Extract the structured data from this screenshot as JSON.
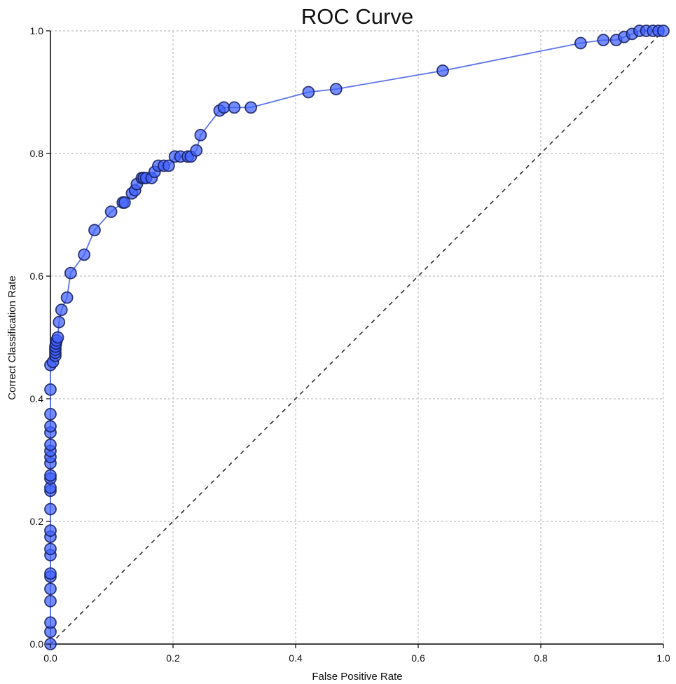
{
  "chart_data": {
    "type": "line",
    "title": "ROC Curve",
    "xlabel": "False Positive Rate",
    "ylabel": "Correct Classification Rate",
    "xlim": [
      0,
      1
    ],
    "ylim": [
      0,
      1
    ],
    "grid": true,
    "xticks": [
      "0.0",
      "0.2",
      "0.4",
      "0.6",
      "0.8",
      "1.0"
    ],
    "yticks": [
      "0.0",
      "0.2",
      "0.4",
      "0.6",
      "0.8",
      "1.0"
    ],
    "colors": {
      "curve": "#5d74e8",
      "point_fill": "#4061ff",
      "point_stroke": "#141c5a",
      "diagonal": "#222222",
      "grid": "#c8c8c8"
    },
    "reference_line": {
      "x": [
        0,
        1
      ],
      "y": [
        0,
        1
      ],
      "style": "dashed"
    },
    "series": [
      {
        "x": [
          0.0,
          0.0,
          0.0,
          0.0,
          0.0,
          0.0,
          0.0,
          0.0,
          0.0,
          0.0,
          0.0,
          0.0,
          0.0,
          0.0,
          0.0,
          0.0,
          0.0,
          0.0,
          0.0,
          0.0,
          0.0,
          0.0,
          0.0,
          0.0,
          0.0,
          0.004,
          0.008,
          0.008,
          0.008,
          0.008,
          0.009,
          0.01,
          0.012,
          0.014,
          0.018,
          0.027,
          0.033,
          0.055,
          0.072,
          0.099,
          0.118,
          0.121,
          0.133,
          0.138,
          0.141,
          0.149,
          0.152,
          0.156,
          0.165,
          0.17,
          0.176,
          0.185,
          0.193,
          0.203,
          0.212,
          0.224,
          0.229,
          0.238,
          0.245,
          0.276,
          0.283,
          0.3,
          0.327,
          0.421,
          0.466,
          0.64,
          0.865,
          0.902,
          0.923,
          0.936,
          0.949,
          0.961,
          0.972,
          0.983,
          0.992,
          1.0
        ],
        "y": [
          0.0,
          0.02,
          0.035,
          0.07,
          0.09,
          0.11,
          0.115,
          0.145,
          0.155,
          0.175,
          0.185,
          0.22,
          0.25,
          0.255,
          0.27,
          0.275,
          0.295,
          0.305,
          0.315,
          0.325,
          0.345,
          0.355,
          0.375,
          0.415,
          0.455,
          0.46,
          0.47,
          0.475,
          0.48,
          0.485,
          0.49,
          0.495,
          0.5,
          0.525,
          0.545,
          0.565,
          0.605,
          0.635,
          0.675,
          0.705,
          0.72,
          0.72,
          0.735,
          0.74,
          0.75,
          0.76,
          0.76,
          0.76,
          0.76,
          0.77,
          0.78,
          0.78,
          0.78,
          0.795,
          0.795,
          0.795,
          0.795,
          0.805,
          0.83,
          0.87,
          0.875,
          0.875,
          0.875,
          0.9,
          0.905,
          0.935,
          0.98,
          0.985,
          0.985,
          0.99,
          0.995,
          1.0,
          1.0,
          1.0,
          1.0,
          1.0
        ]
      }
    ]
  }
}
